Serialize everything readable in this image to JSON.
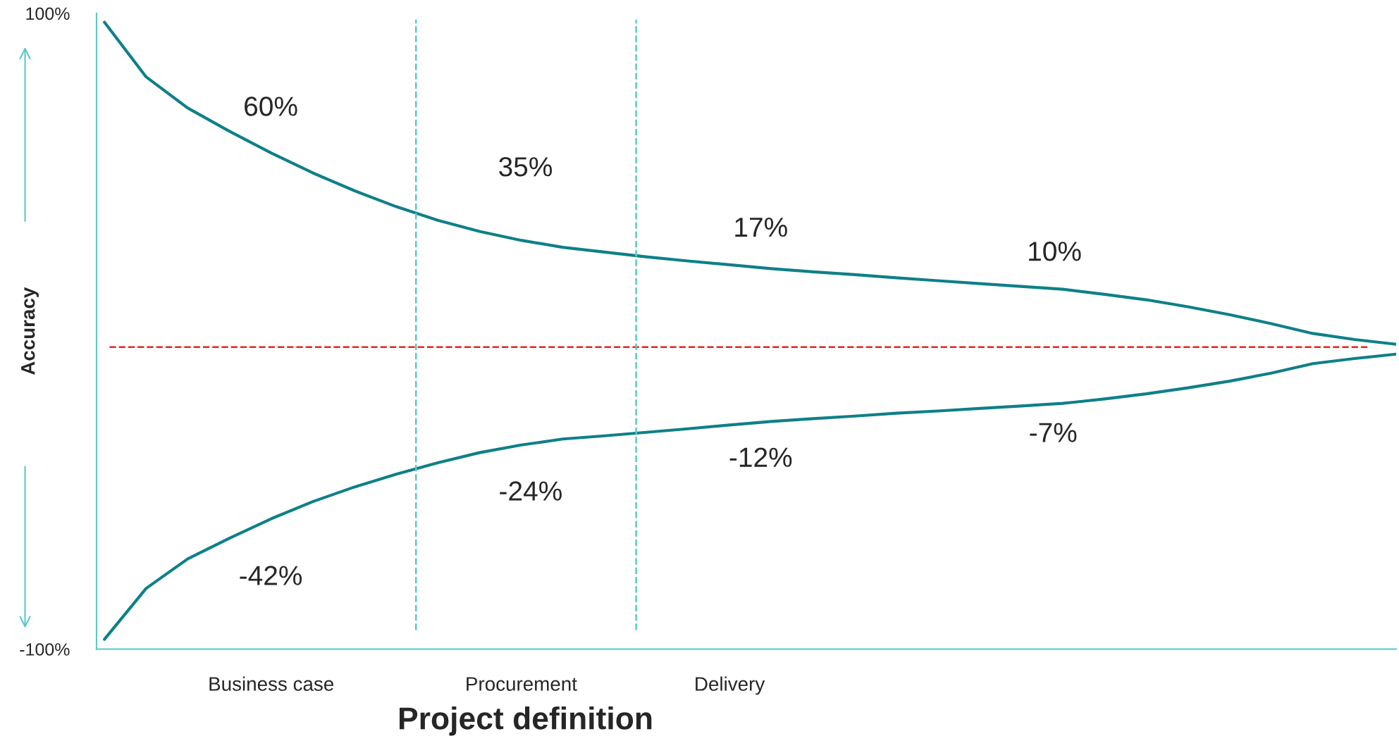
{
  "chart_data": {
    "type": "line",
    "xlabel": "Project definition",
    "ylabel": "Accuracy",
    "categories": [
      null,
      null,
      null,
      null,
      "Business case",
      null,
      null,
      null,
      null,
      null,
      "Procurement",
      null,
      null,
      null,
      null,
      "Delivery",
      null,
      null,
      null,
      null,
      null,
      null,
      null,
      null,
      null,
      null,
      null,
      null,
      null,
      null,
      null,
      null
    ],
    "ylim": [
      -100,
      100
    ],
    "yticks": [
      {
        "value": -100,
        "label": "-100%"
      },
      {
        "value": 100,
        "label": "100%"
      }
    ],
    "grid": false,
    "legend": false,
    "marker": "none",
    "line_style": "solid",
    "series": [
      {
        "color": "#0e8088",
        "values": [
          97.2,
          80.0,
          70.2,
          62.9,
          56.1,
          49.8,
          44.2,
          39.2,
          34.9,
          31.4,
          28.6,
          26.4,
          24.9,
          23.4,
          22.1,
          20.9,
          19.7,
          18.7,
          17.8,
          16.8,
          15.9,
          15.0,
          14.1,
          13.2,
          11.6,
          9.9,
          7.7,
          5.2,
          2.4,
          -0.7,
          -2.6,
          -4.1
        ]
      },
      {
        "color": "#0e8088",
        "values": [
          -96.9,
          -80.9,
          -71.6,
          -65.1,
          -59.0,
          -53.6,
          -49.0,
          -45.0,
          -41.4,
          -38.2,
          -35.8,
          -33.9,
          -32.9,
          -31.8,
          -30.7,
          -29.5,
          -28.4,
          -27.5,
          -26.7,
          -25.8,
          -25.1,
          -24.3,
          -23.5,
          -22.7,
          -21.3,
          -19.7,
          -17.8,
          -15.7,
          -13.2,
          -10.2,
          -8.6,
          -7.2
        ]
      }
    ],
    "ref_lines": [
      {
        "axis": "y",
        "value": -5,
        "color": "#e8231f",
        "line_style": "dashed"
      }
    ],
    "annotations": [
      "60%",
      "35%",
      "17%",
      "10%",
      "-7%",
      "-12%",
      "-24%",
      "-42%"
    ]
  }
}
